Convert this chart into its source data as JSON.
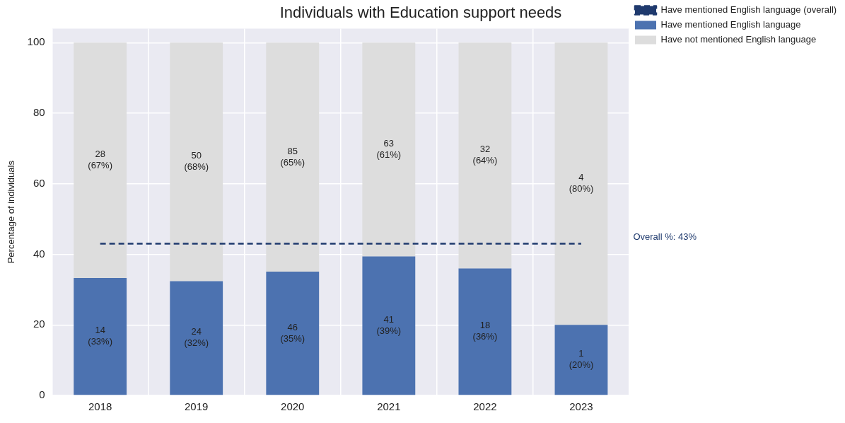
{
  "chart_data": {
    "type": "bar",
    "title": "Individuals with Education support needs",
    "ylabel": "Percentage of individuals",
    "categories": [
      "2018",
      "2019",
      "2020",
      "2021",
      "2022",
      "2023"
    ],
    "stacked": true,
    "series": [
      {
        "name": "Have mentioned English language (overall)",
        "type": "line",
        "color": "#1f3a6e",
        "line_style": "dashed",
        "marker": "none",
        "values": [
          43,
          43,
          43,
          43,
          43,
          43
        ]
      },
      {
        "name": "Have mentioned English language",
        "color": "#4c72b0",
        "values": [
          33.3,
          32.4,
          35.1,
          39.4,
          36,
          20
        ],
        "value_labels": [
          "14\n(33%)",
          "24\n(32%)",
          "46\n(35%)",
          "41\n(39%)",
          "18\n(36%)",
          "1\n(20%)"
        ]
      },
      {
        "name": "Have not mentioned English language",
        "color": "#dddddd",
        "values": [
          66.7,
          67.6,
          64.9,
          60.6,
          64,
          80
        ],
        "value_labels": [
          "28\n(67%)",
          "50\n(68%)",
          "85\n(65%)",
          "63\n(61%)",
          "32\n(64%)",
          "4\n(80%)"
        ]
      }
    ],
    "annotations": [
      "Overall %: 43%"
    ],
    "ylim": [
      0,
      104
    ],
    "yticks": [
      0,
      20,
      40,
      60,
      80,
      100
    ],
    "grid": true,
    "legend": "top right"
  }
}
